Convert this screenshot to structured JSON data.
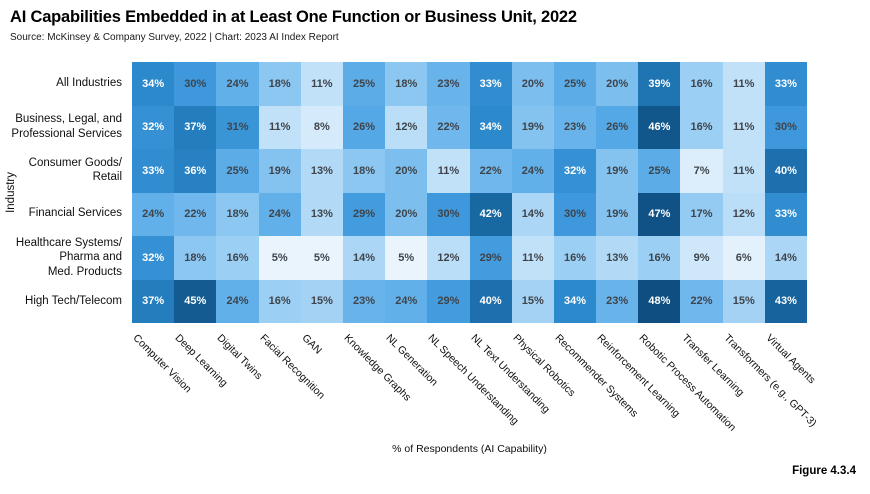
{
  "header": {
    "title": "AI Capabilities Embedded in at Least One Function or Business Unit, 2022",
    "source_line": "Source: McKinsey & Company Survey, 2022 | Chart: 2023 AI Index Report"
  },
  "figure_label": "Figure 4.3.4",
  "chart_data": {
    "type": "heatmap",
    "title": "AI Capabilities Embedded in at Least One Function or Business Unit, 2022",
    "xlabel": "% of Respondents (AI Capability)",
    "ylabel": "Industry",
    "unit": "%",
    "value_range": [
      5,
      48
    ],
    "legend": "none",
    "grid": false,
    "columns": [
      "Computer Vision",
      "Deep Learning",
      "Digital Twins",
      "Facial Recognition",
      "GAN",
      "Knowledge Graphs",
      "NL Generation",
      "NL Speech Understanding",
      "NL Text Understanding",
      "Physical Robotics",
      "Recommender Systems",
      "Reinforcement Learning",
      "Robotic Process Automation",
      "Transfer Learning",
      "Transformers (e.g., GPT-3)",
      "Virtual Agents"
    ],
    "rows": [
      {
        "label": "All Industries",
        "label_lines": [
          "All Industries"
        ],
        "values": [
          34,
          30,
          24,
          18,
          11,
          25,
          18,
          23,
          33,
          20,
          25,
          20,
          39,
          16,
          11,
          33
        ]
      },
      {
        "label": "Business, Legal, and Professional Services",
        "label_lines": [
          "Business, Legal, and",
          "Professional Services"
        ],
        "values": [
          32,
          37,
          31,
          11,
          8,
          26,
          12,
          22,
          34,
          19,
          23,
          26,
          46,
          16,
          11,
          30
        ]
      },
      {
        "label": "Consumer Goods/Retail",
        "label_lines": [
          "Consumer Goods/",
          "Retail"
        ],
        "values": [
          33,
          36,
          25,
          19,
          13,
          18,
          20,
          11,
          22,
          24,
          32,
          19,
          25,
          7,
          11,
          40
        ]
      },
      {
        "label": "Financial Services",
        "label_lines": [
          "Financial Services"
        ],
        "values": [
          24,
          22,
          18,
          24,
          13,
          29,
          20,
          30,
          42,
          14,
          30,
          19,
          47,
          17,
          12,
          33
        ]
      },
      {
        "label": "Healthcare Systems/Pharma and Med. Products",
        "label_lines": [
          "Healthcare Systems/",
          "Pharma and",
          "Med. Products"
        ],
        "values": [
          32,
          18,
          16,
          5,
          5,
          14,
          5,
          12,
          29,
          11,
          16,
          13,
          16,
          9,
          6,
          14
        ]
      },
      {
        "label": "High Tech/Telecom",
        "label_lines": [
          "High Tech/Telecom"
        ],
        "values": [
          37,
          45,
          24,
          16,
          15,
          23,
          24,
          29,
          40,
          15,
          34,
          23,
          48,
          22,
          15,
          43
        ]
      }
    ],
    "color_scale": {
      "stops": [
        [
          5,
          "#E9F4FD"
        ],
        [
          12,
          "#BADEF8"
        ],
        [
          20,
          "#7CBFEF"
        ],
        [
          28,
          "#47A0E2"
        ],
        [
          34,
          "#2C89CC"
        ],
        [
          41,
          "#1A6CA8"
        ],
        [
          48,
          "#0E4E80"
        ]
      ],
      "white_text_min": 32,
      "dark_text_color": "#3F444B",
      "white_text_color": "#FFFFFF"
    }
  }
}
